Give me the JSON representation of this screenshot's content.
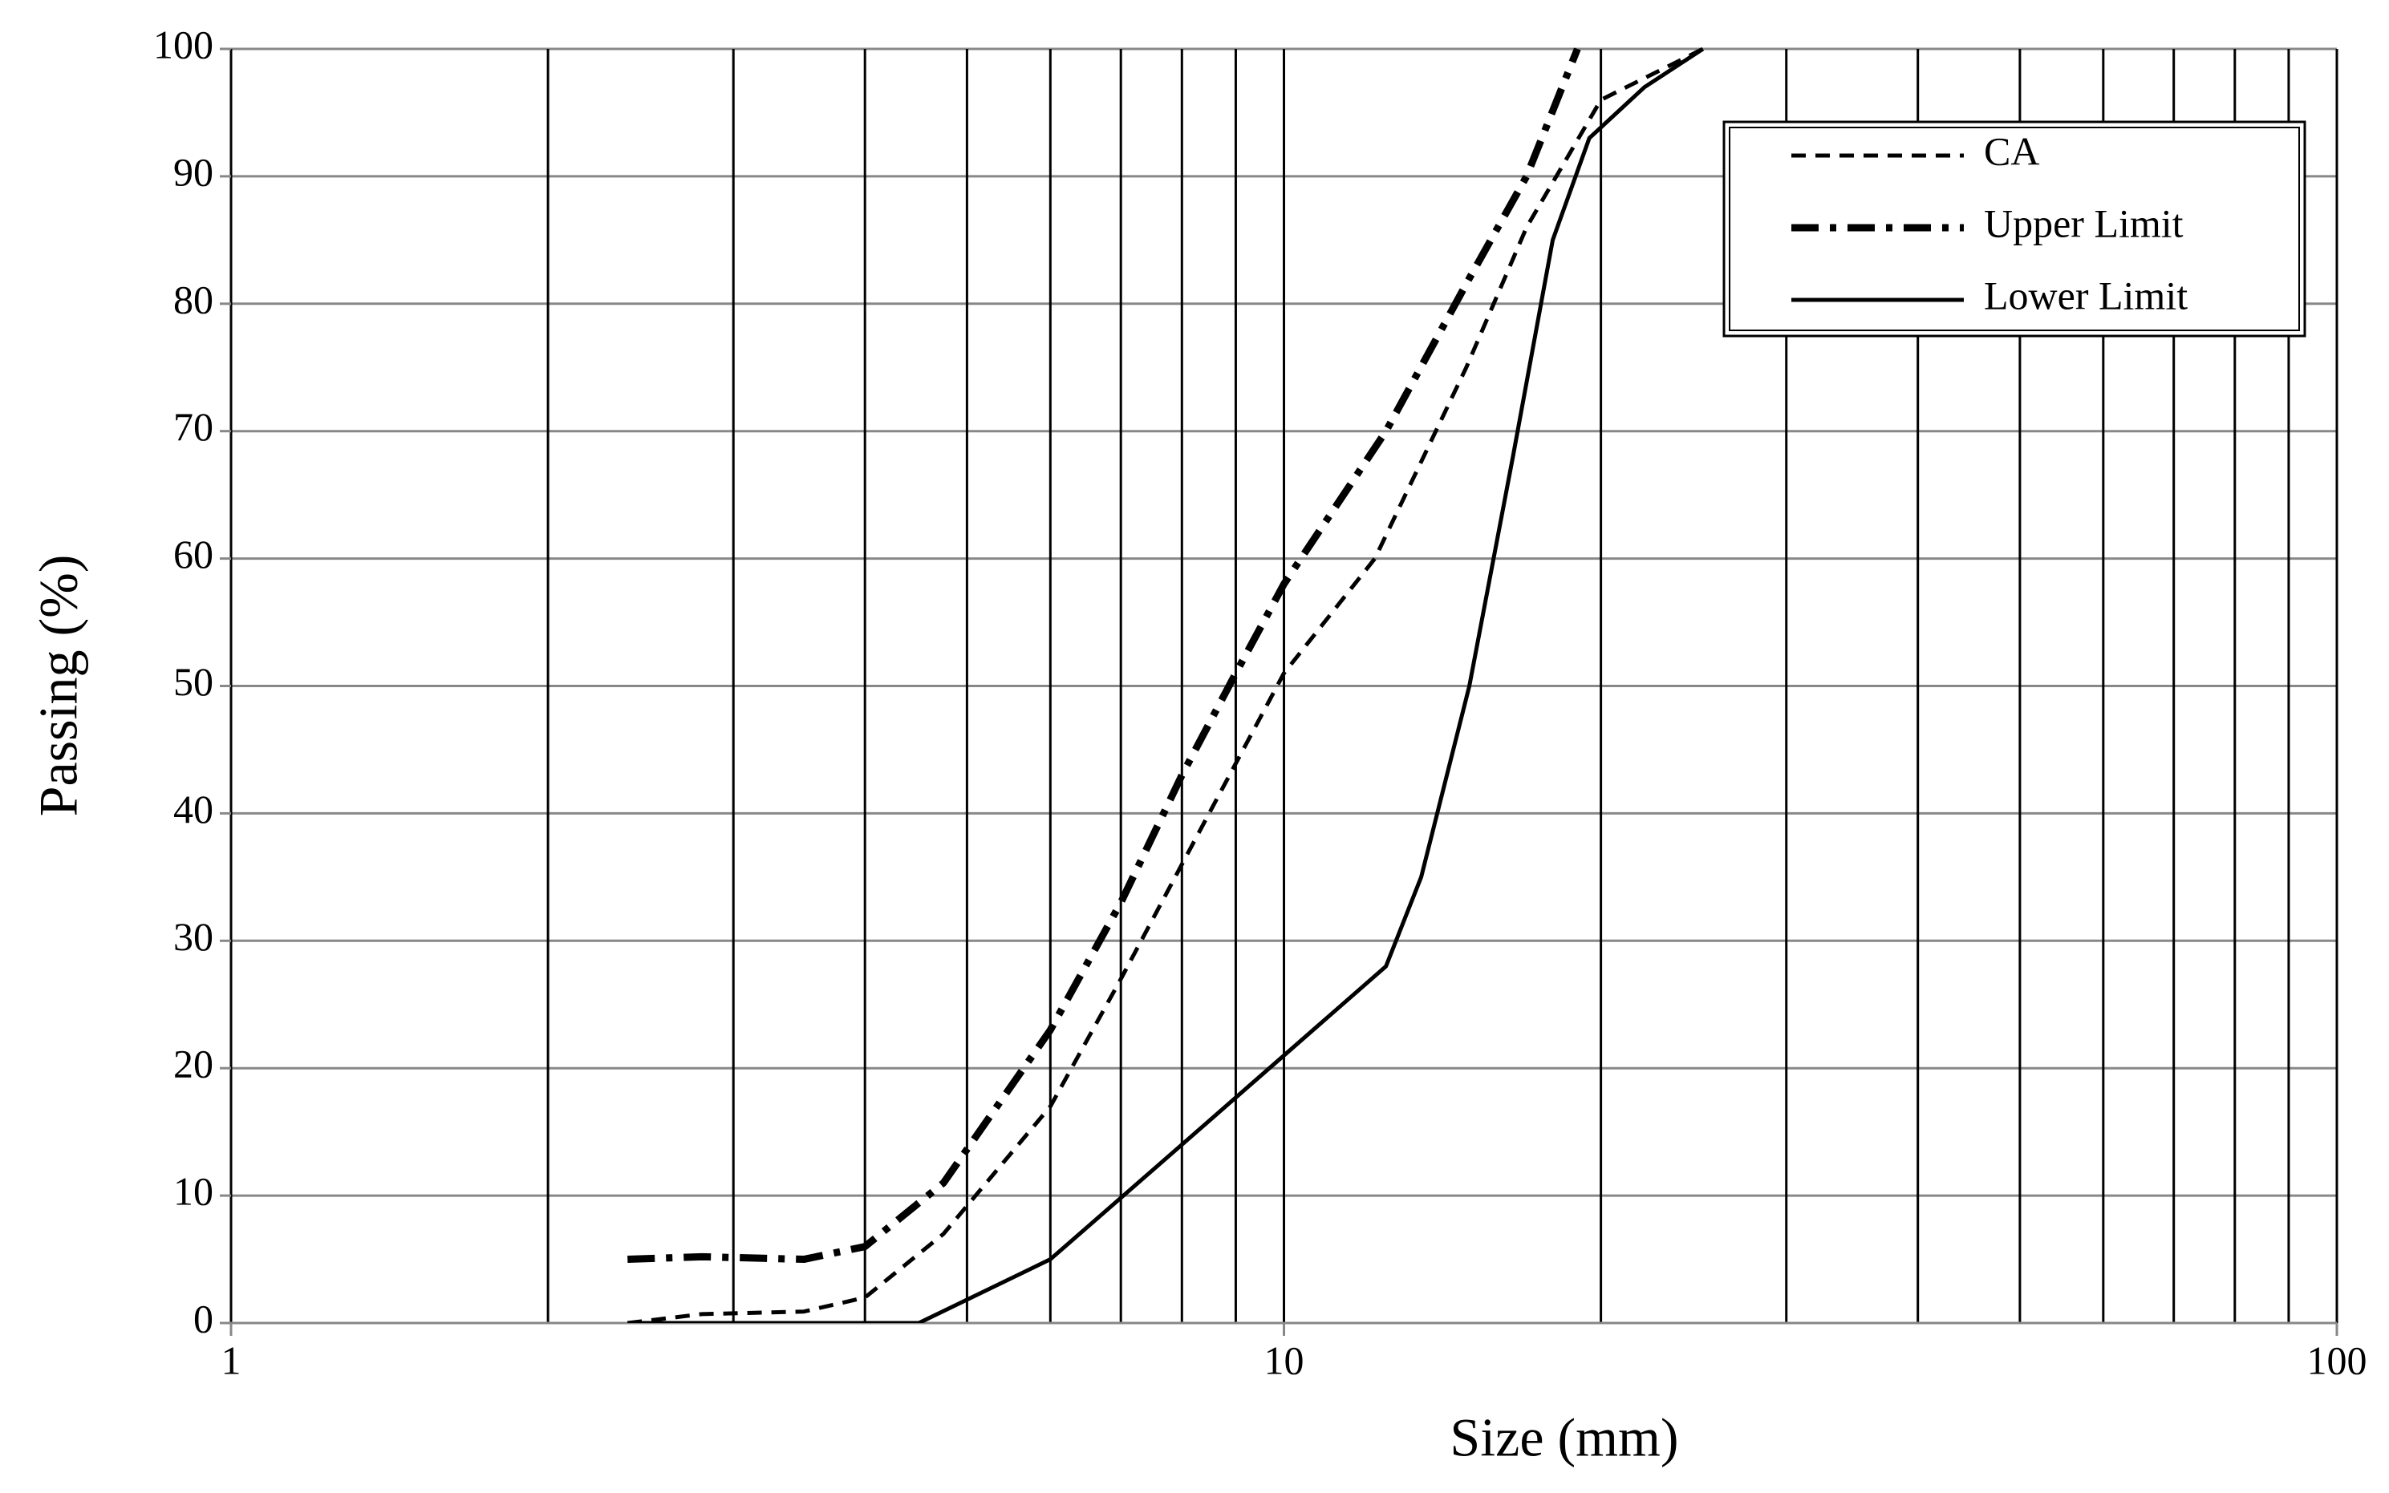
{
  "chart_data": {
    "type": "line",
    "x_label": "Size (mm)",
    "y_label": "Passing (%)",
    "xlog": true,
    "xlim": [
      1,
      100
    ],
    "xticks": [
      1,
      10,
      100
    ],
    "xgrid": [
      1,
      2,
      3,
      4,
      5,
      6,
      7,
      8,
      9,
      10,
      20,
      30,
      40,
      50,
      60,
      70,
      80,
      90,
      100
    ],
    "ylim": [
      0,
      100
    ],
    "yticks": [
      0,
      10,
      20,
      30,
      40,
      50,
      60,
      70,
      80,
      90,
      100
    ],
    "grid": true,
    "legend": "upper right",
    "series": [
      {
        "name": "CA",
        "color": "#000000",
        "style": "dashed",
        "x": [
          2.38,
          2.8,
          3.5,
          4,
          4.75,
          6,
          7,
          8,
          10,
          12.2,
          14.9,
          17,
          20,
          25
        ],
        "values": [
          0,
          0.7,
          0.9,
          2,
          7,
          17,
          27,
          36,
          51,
          60,
          75,
          86,
          96,
          100
        ]
      },
      {
        "name": "Upper Limit",
        "color": "#000000",
        "style": "dashdot",
        "x": [
          2.38,
          2.8,
          3.5,
          4,
          4.75,
          6,
          7,
          8,
          9,
          10,
          12.5,
          15,
          17,
          19
        ],
        "values": [
          5,
          5.2,
          5,
          6,
          11,
          23,
          33,
          43,
          51,
          58,
          70,
          82,
          90,
          100
        ]
      },
      {
        "name": "Lower Limit",
        "color": "#000000",
        "style": "solid",
        "x": [
          2.38,
          4.5,
          6,
          8,
          10,
          12.5,
          13.5,
          15,
          16.5,
          18,
          19.5,
          22,
          25
        ],
        "values": [
          0,
          0,
          5,
          14,
          21,
          28,
          35,
          50,
          68,
          85,
          93,
          97,
          100
        ]
      }
    ]
  }
}
